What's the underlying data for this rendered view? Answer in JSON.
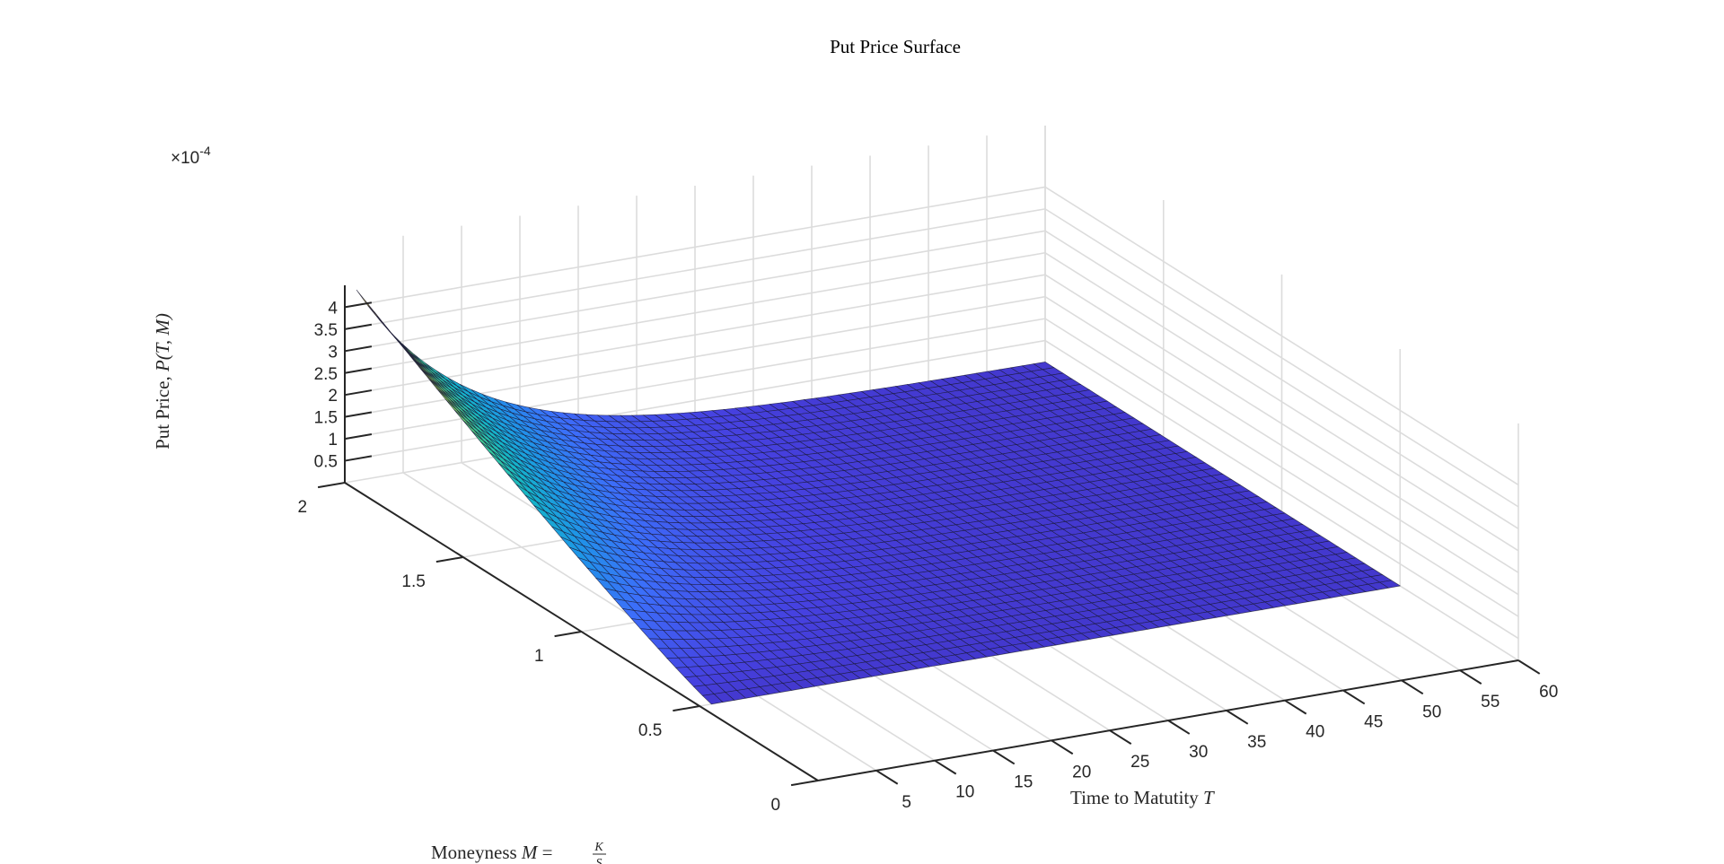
{
  "chart_data": {
    "type": "surface",
    "title": "Put Price Surface",
    "xlabel": "Time to Matutity",
    "xlabel_var": "T",
    "ylabel_prefix": "Moneyness",
    "ylabel_var": "M",
    "ylabel_num": "K",
    "ylabel_den": "S",
    "zlabel": "Put Price,",
    "zlabel_var": "P",
    "zlabel_args": "(T, M)",
    "z_exponent_base": "×10",
    "z_exponent_power": "-4",
    "xlim": [
      0,
      60
    ],
    "ylim": [
      0,
      2
    ],
    "zlim": [
      0,
      4.5
    ],
    "x_ticks": [
      "5",
      "10",
      "15",
      "20",
      "25",
      "30",
      "35",
      "40",
      "45",
      "50",
      "55",
      "60"
    ],
    "y_ticks": [
      "0",
      "0.5",
      "1",
      "1.5",
      "2"
    ],
    "z_ticks": [
      "0.5",
      "1",
      "1.5",
      "2",
      "2.5",
      "3",
      "3.5",
      "4"
    ],
    "grid": true,
    "colormap": "parula",
    "x_grid": [
      1,
      60
    ],
    "y_grid": [
      0.5,
      2
    ],
    "samples": [
      {
        "T": 1,
        "M": 2.0,
        "P": 4.35
      },
      {
        "T": 1,
        "M": 1.5,
        "P": 2.55
      },
      {
        "T": 1,
        "M": 1.0,
        "P": 1.25
      },
      {
        "T": 1,
        "M": 0.5,
        "P": 0.0
      },
      {
        "T": 60,
        "M": 2.0,
        "P": 0.0
      },
      {
        "T": 60,
        "M": 0.5,
        "P": 0.0
      }
    ]
  }
}
